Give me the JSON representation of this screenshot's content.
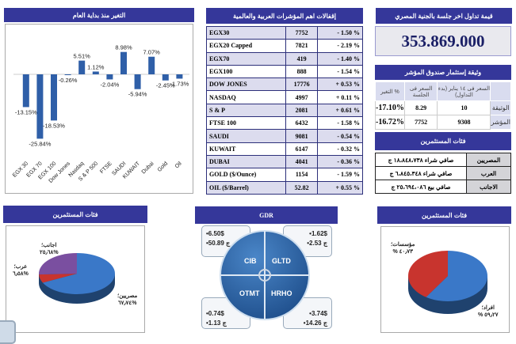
{
  "ytd": {
    "title": "التغير منذ بداية العام"
  },
  "chart_data": {
    "type": "bar",
    "title": "التغير منذ بداية العام",
    "categories": [
      "EGX 30",
      "EGX 70",
      "EGX 100",
      "Dow Jones",
      "Nasdaq",
      "S & P 500",
      "FTSE",
      "SAUDI",
      "KUWAIT",
      "Dubai",
      "Gold",
      "Oil"
    ],
    "values": [
      -13.15,
      -25.84,
      -18.53,
      -0.26,
      5.51,
      1.12,
      -2.04,
      8.98,
      -5.94,
      7.07,
      -2.45,
      -1.73
    ],
    "labels": [
      "-13.15%",
      "-25.84%",
      "-18.53%",
      "-0.26%",
      "5.51%",
      "1.12%",
      "-2.04%",
      "8.98%",
      "-5.94%",
      "7.07%",
      "-2.45%",
      "-1.73%"
    ],
    "ylim": [
      -28,
      10
    ],
    "color": "#2f5fa8"
  },
  "indices": {
    "title": "إقفالات اهم المؤشرات العربية والعالمية",
    "rows": [
      {
        "name": "EGX30",
        "value": "7752",
        "change": "- 1.50 %"
      },
      {
        "name": "EGX20 Capped",
        "value": "7821",
        "change": "- 2.19 %"
      },
      {
        "name": "EGX70",
        "value": "419",
        "change": "- 1.40 %"
      },
      {
        "name": "EGX100",
        "value": "888",
        "change": "- 1.54 %"
      },
      {
        "name": "DOW JONES",
        "value": "17776",
        "change": "+ 0.53 %"
      },
      {
        "name": "NASDAQ",
        "value": "4997",
        "change": "+ 0.11 %"
      },
      {
        "name": "S & P",
        "value": "2081",
        "change": "+ 0.61 %"
      },
      {
        "name": "FTSE 100",
        "value": "6432",
        "change": "- 1.58 %"
      },
      {
        "name": "SAUDI",
        "value": "9081",
        "change": "- 0.54 %"
      },
      {
        "name": "KUWAIT",
        "value": "6147",
        "change": "- 0.32 %"
      },
      {
        "name": "DUBAI",
        "value": "4041",
        "change": "- 0.36 %"
      },
      {
        "name": "GOLD ($/Ounce)",
        "value": "1154",
        "change": "- 1.59 %"
      },
      {
        "name": "OIL ($/Barrel)",
        "value": "52.82",
        "change": "+ 0.55 %"
      }
    ]
  },
  "turnover": {
    "title": "قيمة تداول اخر جلسة بالجنية المصري",
    "value": "353.869.000"
  },
  "fund": {
    "title": "وثيقة إستثمار صندوق المؤشر",
    "headers": [
      "السعر فى ١٤ يناير (بدء التداول)",
      "السعر فى الجلسة",
      "التغير %"
    ],
    "rows": [
      {
        "label": "الوثيقة",
        "start": "10",
        "session": "8.29",
        "change": "-17.10%"
      },
      {
        "label": "المؤشر",
        "start": "9308",
        "session": "7752",
        "change": "-16.72%"
      }
    ]
  },
  "investors": {
    "title": "فئات المستثمرين",
    "rows": [
      {
        "label": "المصريين",
        "value": "صافي شراء ١٨،٨٤٨،٧٣٨ ج"
      },
      {
        "label": "العرب",
        "value": "صافي شراء ٦،٨٤٥،٣٤٨ ج"
      },
      {
        "label": "الاجانب",
        "value": "صافي بيع ٢٥،٦٩٤،٠٨٦ ج"
      }
    ]
  },
  "pie_nationality": {
    "title": "فئات المستثمرين",
    "slices": [
      {
        "label": "مصريين؛",
        "pct": "%٦٧٫٧٤",
        "value": 67.74,
        "color": "#3a78c8"
      },
      {
        "label": "عرب؛",
        "pct": "%٦٫٥٨",
        "value": 6.58,
        "color": "#c8342e"
      },
      {
        "label": "اجانب؛",
        "pct": "%٢٥٫٦٨",
        "value": 25.68,
        "color": "#7a4fa0"
      }
    ]
  },
  "pie_type": {
    "title": "فئات المستثمرين",
    "slices": [
      {
        "label": "افراد؛",
        "pct": "٥٩٫٢٧ %",
        "value": 59.27,
        "color": "#3a78c8"
      },
      {
        "label": "مؤسسات؛",
        "pct": "٤٠٫٧٣ %",
        "value": 40.73,
        "color": "#c8342e"
      }
    ]
  },
  "gdr": {
    "title": "GDR",
    "items": [
      {
        "name": "CIB",
        "usd": "•6.50$",
        "egp": "•50.89 ج"
      },
      {
        "name": "GLTD",
        "usd": "•1.62$",
        "egp": "•2.53 ج"
      },
      {
        "name": "OTMT",
        "usd": "•0.74$",
        "egp": "•1.13 ج"
      },
      {
        "name": "HRHO",
        "usd": "•3.74$",
        "egp": "•14.26 ج"
      }
    ]
  }
}
